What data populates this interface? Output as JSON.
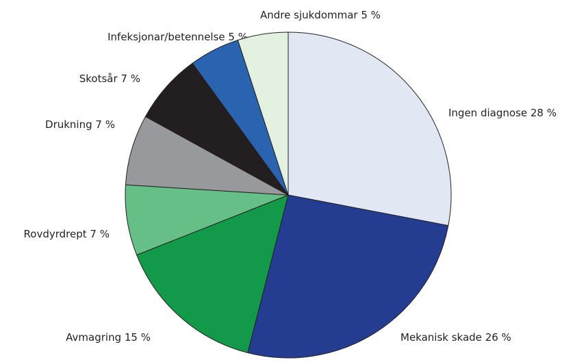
{
  "chart_data": {
    "type": "pie",
    "categories": [
      "Ingen diagnose",
      "Mekanisk skade",
      "Avmagring",
      "Rovdyrdrept",
      "Drukning",
      "Skotsår",
      "Infeksjonar/betennelse",
      "Andre sjukdommar"
    ],
    "values": [
      28,
      26,
      15,
      7,
      7,
      7,
      5,
      5
    ],
    "value_labels": [
      "28 %",
      "26 %",
      "15 %",
      "7 %",
      "7 %",
      "7 %",
      "5 %",
      "5 %"
    ],
    "colors": [
      "#e1e8f3",
      "#253d91",
      "#13994a",
      "#66bf86",
      "#98999c",
      "#231f20",
      "#2a63b0",
      "#e2f1e0"
    ]
  }
}
